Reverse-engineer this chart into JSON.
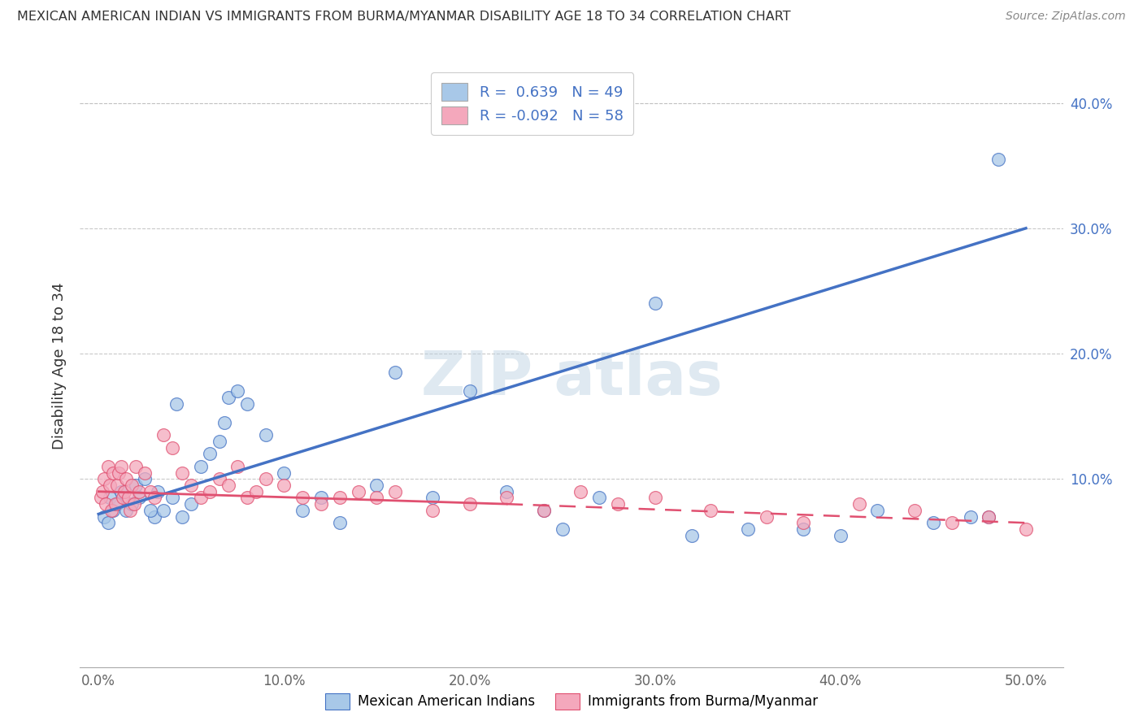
{
  "title": "MEXICAN AMERICAN INDIAN VS IMMIGRANTS FROM BURMA/MYANMAR DISABILITY AGE 18 TO 34 CORRELATION CHART",
  "source": "Source: ZipAtlas.com",
  "ylabel": "Disability Age 18 to 34",
  "xlim": [
    0,
    50
  ],
  "ylim": [
    -5,
    43
  ],
  "r_blue": 0.639,
  "n_blue": 49,
  "r_pink": -0.092,
  "n_pink": 58,
  "blue_dot_color": "#a8c8e8",
  "pink_dot_color": "#f4a8bc",
  "line_blue": "#4472c4",
  "line_pink": "#e05070",
  "legend_blue": "Mexican American Indians",
  "legend_pink": "Immigrants from Burma/Myanmar",
  "blue_line_x0": 0,
  "blue_line_y0": 7.2,
  "blue_line_x1": 50,
  "blue_line_y1": 30.0,
  "pink_solid_x0": 0,
  "pink_solid_y0": 9.0,
  "pink_solid_x1": 22,
  "pink_solid_y1": 8.0,
  "pink_dash_x0": 22,
  "pink_dash_y0": 8.0,
  "pink_dash_x1": 50,
  "pink_dash_y1": 6.5,
  "ytick_vals": [
    0,
    10,
    20,
    30,
    40
  ],
  "ytick_labels": [
    "",
    "10.0%",
    "20.0%",
    "30.0%",
    "40.0%"
  ],
  "xtick_vals": [
    0,
    10,
    20,
    30,
    40,
    50
  ],
  "xtick_labels": [
    "0.0%",
    "10.0%",
    "20.0%",
    "30.0%",
    "40.0%",
    "50.0%"
  ],
  "blue_x": [
    0.3,
    0.5,
    0.6,
    0.8,
    1.0,
    1.2,
    1.5,
    1.8,
    2.0,
    2.2,
    2.5,
    3.0,
    3.2,
    3.5,
    4.0,
    4.5,
    5.0,
    5.5,
    6.0,
    6.5,
    7.0,
    7.5,
    8.0,
    9.0,
    10.0,
    11.0,
    12.0,
    13.0,
    15.0,
    16.0,
    18.0,
    20.0,
    22.0,
    24.0,
    25.0,
    27.0,
    30.0,
    32.0,
    35.0,
    38.0,
    40.0,
    42.0,
    45.0,
    47.0,
    48.0,
    48.5,
    2.8,
    4.2,
    6.8
  ],
  "blue_y": [
    7.0,
    6.5,
    8.5,
    7.5,
    8.0,
    9.0,
    7.5,
    8.0,
    9.5,
    8.5,
    10.0,
    7.0,
    9.0,
    7.5,
    8.5,
    7.0,
    8.0,
    11.0,
    12.0,
    13.0,
    16.5,
    17.0,
    16.0,
    13.5,
    10.5,
    7.5,
    8.5,
    6.5,
    9.5,
    18.5,
    8.5,
    17.0,
    9.0,
    7.5,
    6.0,
    8.5,
    24.0,
    5.5,
    6.0,
    6.0,
    5.5,
    7.5,
    6.5,
    7.0,
    7.0,
    35.5,
    7.5,
    16.0,
    14.5
  ],
  "pink_x": [
    0.1,
    0.2,
    0.3,
    0.4,
    0.5,
    0.6,
    0.7,
    0.8,
    0.9,
    1.0,
    1.1,
    1.2,
    1.3,
    1.4,
    1.5,
    1.6,
    1.7,
    1.8,
    1.9,
    2.0,
    2.2,
    2.5,
    2.8,
    3.0,
    3.5,
    4.0,
    4.5,
    5.0,
    5.5,
    6.0,
    6.5,
    7.0,
    7.5,
    8.0,
    8.5,
    9.0,
    10.0,
    11.0,
    12.0,
    13.0,
    14.0,
    15.0,
    16.0,
    18.0,
    20.0,
    22.0,
    24.0,
    26.0,
    28.0,
    30.0,
    33.0,
    36.0,
    38.0,
    41.0,
    44.0,
    46.0,
    48.0,
    50.0
  ],
  "pink_y": [
    8.5,
    9.0,
    10.0,
    8.0,
    11.0,
    9.5,
    7.5,
    10.5,
    8.0,
    9.5,
    10.5,
    11.0,
    8.5,
    9.0,
    10.0,
    8.5,
    7.5,
    9.5,
    8.0,
    11.0,
    9.0,
    10.5,
    9.0,
    8.5,
    13.5,
    12.5,
    10.5,
    9.5,
    8.5,
    9.0,
    10.0,
    9.5,
    11.0,
    8.5,
    9.0,
    10.0,
    9.5,
    8.5,
    8.0,
    8.5,
    9.0,
    8.5,
    9.0,
    7.5,
    8.0,
    8.5,
    7.5,
    9.0,
    8.0,
    8.5,
    7.5,
    7.0,
    6.5,
    8.0,
    7.5,
    6.5,
    7.0,
    6.0
  ]
}
